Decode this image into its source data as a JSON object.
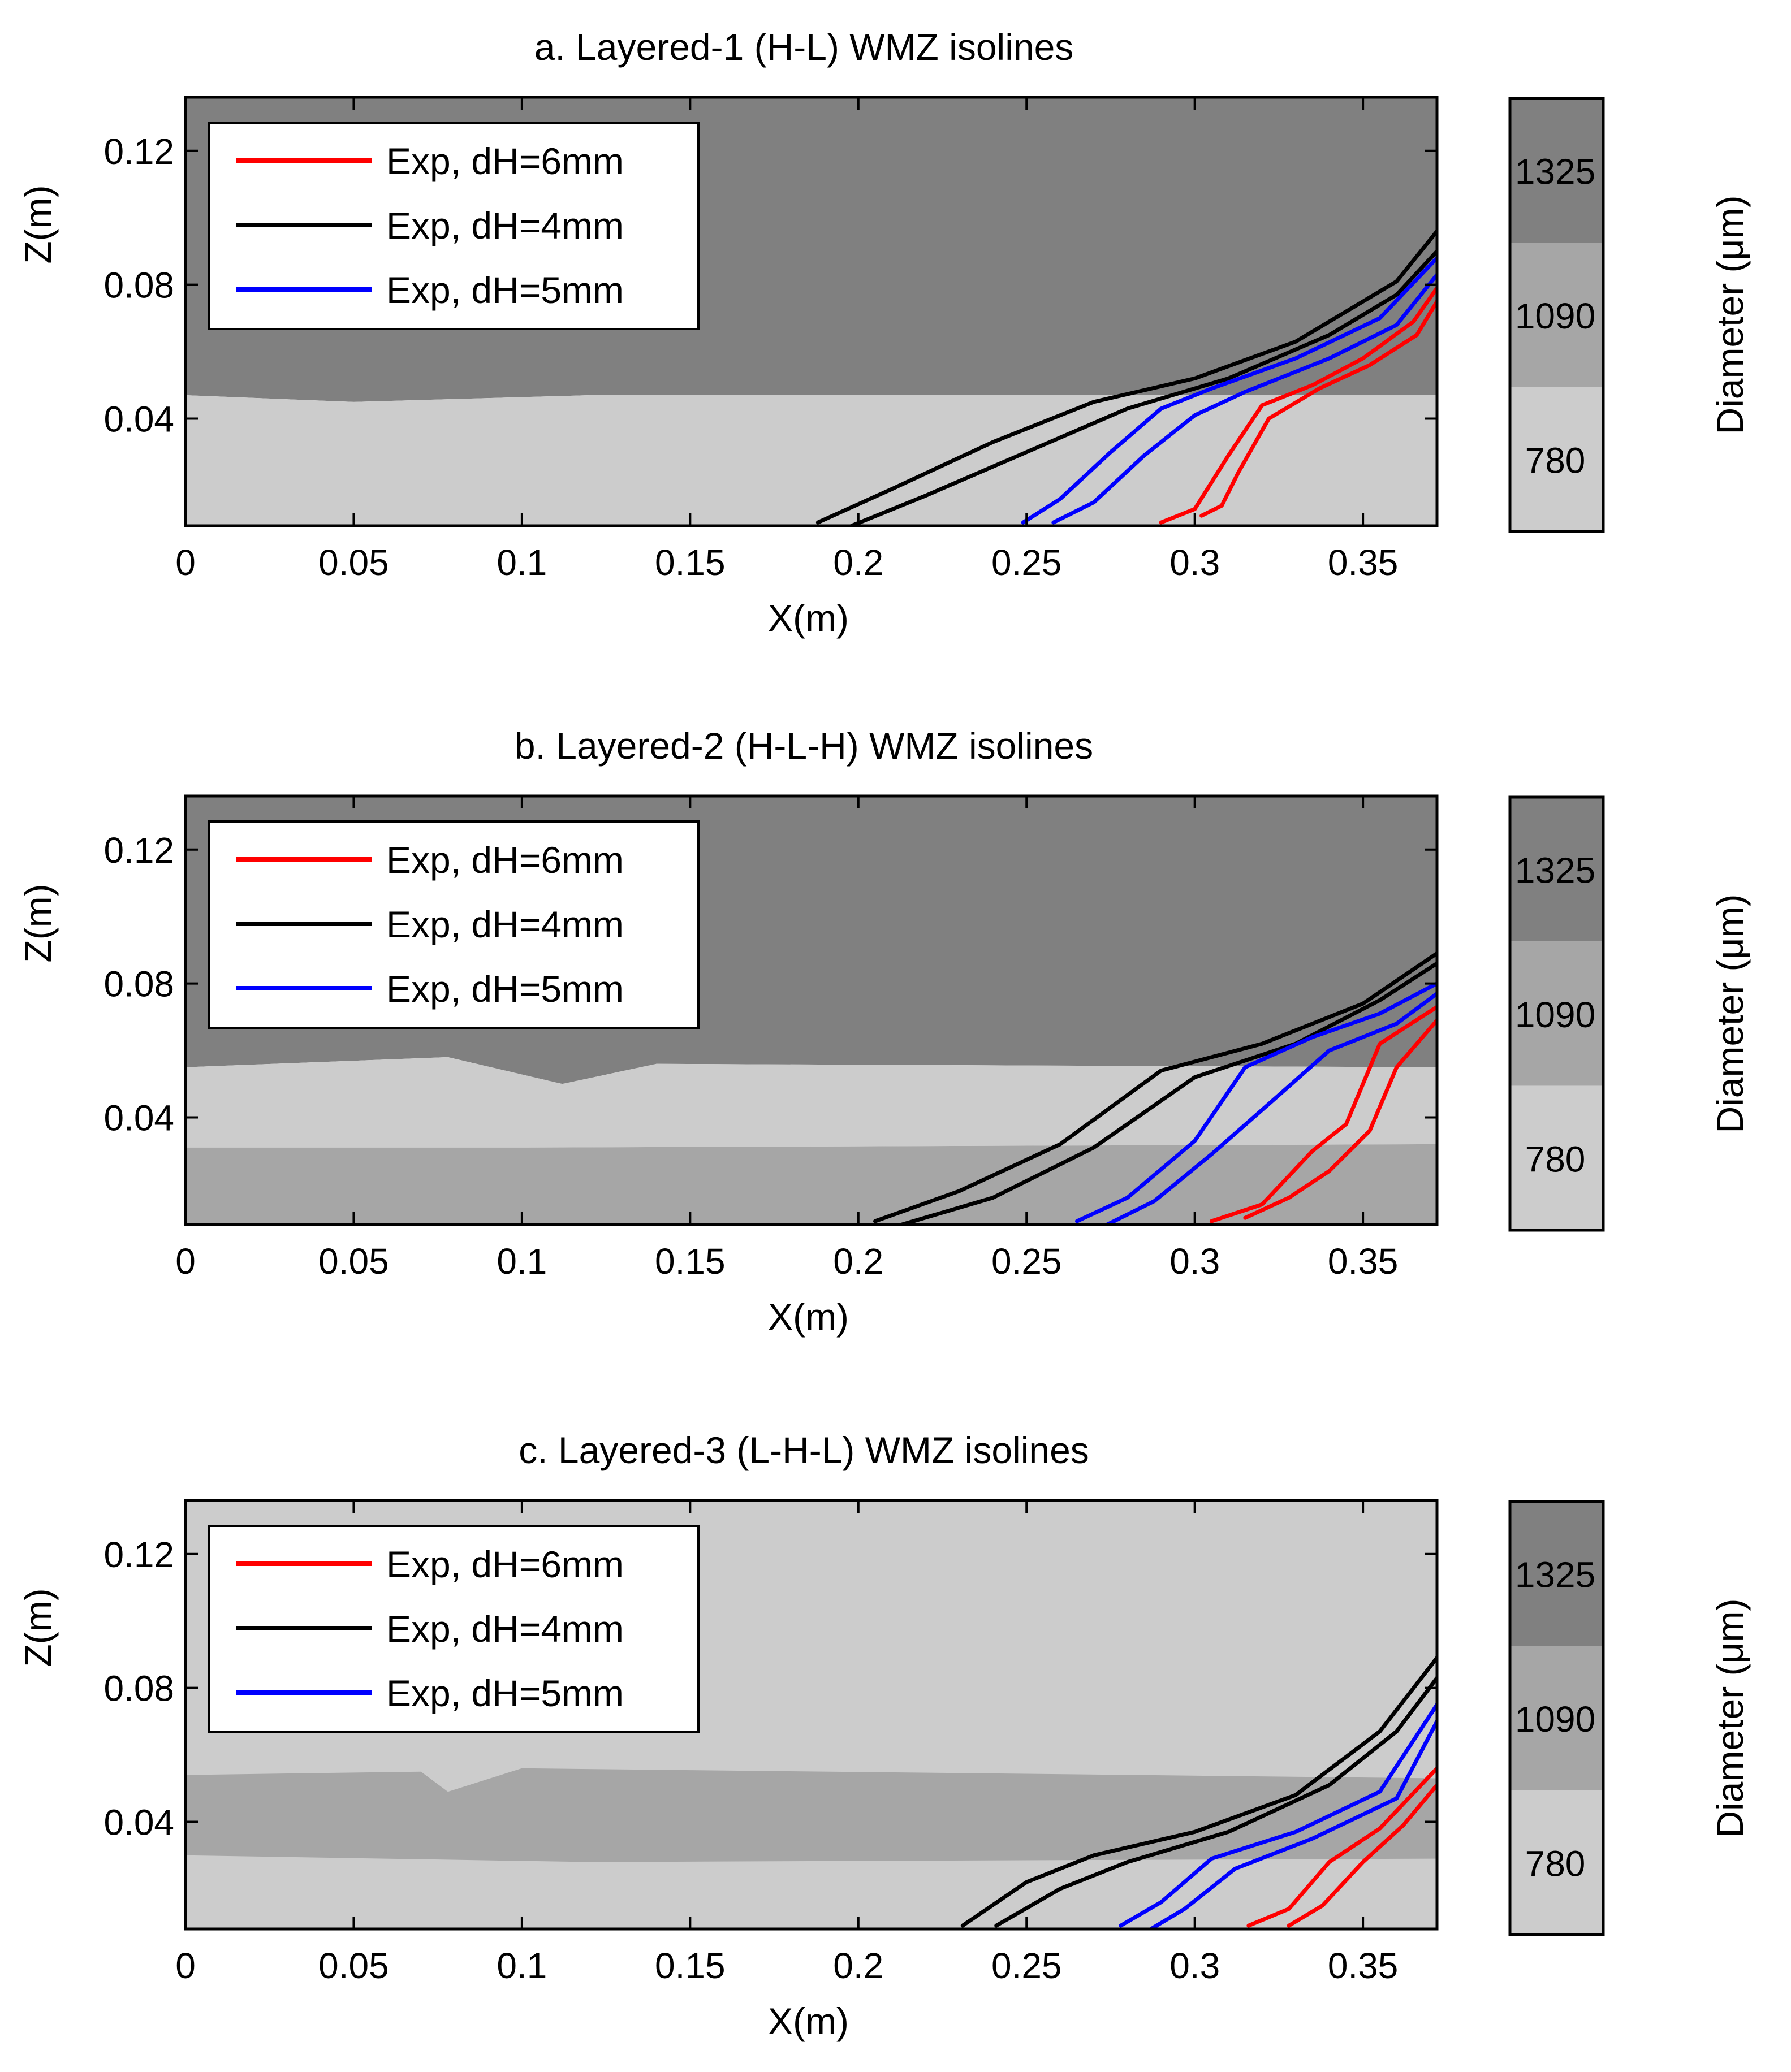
{
  "colors": {
    "dark": "#808080",
    "medium": "#a6a6a6",
    "light": "#cccccc",
    "red": "#ff0000",
    "black": "#000000",
    "blue": "#0000ff"
  },
  "colorbar": {
    "label": "Diameter (μm)",
    "ticks": [
      "1325",
      "1090",
      "780"
    ]
  },
  "chart_data": [
    {
      "type": "line",
      "title": "a. Layered-1 (H-L) WMZ isolines",
      "xlabel": "X(m)",
      "ylabel": "Z(m)",
      "xlim": [
        0,
        0.372
      ],
      "ylim": [
        0.008,
        0.136
      ],
      "xticks": [
        0,
        0.05,
        0.1,
        0.15,
        0.2,
        0.25,
        0.3,
        0.35
      ],
      "xtick_labels": [
        "0",
        "0.05",
        "0.1",
        "0.15",
        "0.2",
        "0.25",
        "0.3",
        "0.35"
      ],
      "yticks": [
        0.04,
        0.08,
        0.12
      ],
      "ytick_labels": [
        "0.04",
        "0.08",
        "0.12"
      ],
      "layers": [
        {
          "class": "dark",
          "points": [
            [
              0,
              0.136
            ],
            [
              0.372,
              0.136
            ],
            [
              0.372,
              0.047
            ],
            [
              0.32,
              0.047
            ],
            [
              0.12,
              0.047
            ],
            [
              0.05,
              0.045
            ],
            [
              0,
              0.047
            ]
          ]
        },
        {
          "class": "light",
          "points": [
            [
              0,
              0.047
            ],
            [
              0.05,
              0.045
            ],
            [
              0.12,
              0.047
            ],
            [
              0.32,
              0.047
            ],
            [
              0.372,
              0.047
            ],
            [
              0.372,
              0.008
            ],
            [
              0,
              0.008
            ]
          ]
        }
      ],
      "series": [
        {
          "name": "Exp, dH=6mm",
          "color": "red",
          "lines": [
            [
              [
                0.29,
                0.009
              ],
              [
                0.3,
                0.013
              ],
              [
                0.31,
                0.029
              ],
              [
                0.32,
                0.044
              ],
              [
                0.335,
                0.05
              ],
              [
                0.35,
                0.058
              ],
              [
                0.365,
                0.069
              ],
              [
                0.372,
                0.079
              ]
            ],
            [
              [
                0.302,
                0.011
              ],
              [
                0.308,
                0.014
              ],
              [
                0.313,
                0.024
              ],
              [
                0.322,
                0.04
              ],
              [
                0.337,
                0.049
              ],
              [
                0.352,
                0.056
              ],
              [
                0.366,
                0.065
              ],
              [
                0.372,
                0.075
              ]
            ]
          ]
        },
        {
          "name": "Exp, dH=4mm",
          "color": "black",
          "lines": [
            [
              [
                0.188,
                0.009
              ],
              [
                0.21,
                0.019
              ],
              [
                0.24,
                0.033
              ],
              [
                0.27,
                0.045
              ],
              [
                0.3,
                0.052
              ],
              [
                0.33,
                0.063
              ],
              [
                0.36,
                0.081
              ],
              [
                0.372,
                0.096
              ]
            ],
            [
              [
                0.198,
                0.008
              ],
              [
                0.22,
                0.017
              ],
              [
                0.25,
                0.03
              ],
              [
                0.28,
                0.043
              ],
              [
                0.31,
                0.052
              ],
              [
                0.34,
                0.065
              ],
              [
                0.36,
                0.077
              ],
              [
                0.372,
                0.09
              ]
            ]
          ]
        },
        {
          "name": "Exp, dH=5mm",
          "color": "blue",
          "lines": [
            [
              [
                0.249,
                0.009
              ],
              [
                0.26,
                0.016
              ],
              [
                0.275,
                0.03
              ],
              [
                0.29,
                0.043
              ],
              [
                0.305,
                0.049
              ],
              [
                0.33,
                0.058
              ],
              [
                0.355,
                0.07
              ],
              [
                0.372,
                0.088
              ]
            ],
            [
              [
                0.258,
                0.009
              ],
              [
                0.27,
                0.015
              ],
              [
                0.285,
                0.029
              ],
              [
                0.3,
                0.041
              ],
              [
                0.315,
                0.048
              ],
              [
                0.34,
                0.058
              ],
              [
                0.36,
                0.068
              ],
              [
                0.372,
                0.083
              ]
            ]
          ]
        }
      ]
    },
    {
      "type": "line",
      "title": "b. Layered-2 (H-L-H) WMZ isolines",
      "xlabel": "X(m)",
      "ylabel": "Z(m)",
      "xlim": [
        0,
        0.372
      ],
      "ylim": [
        0.008,
        0.136
      ],
      "xticks": [
        0,
        0.05,
        0.1,
        0.15,
        0.2,
        0.25,
        0.3,
        0.35
      ],
      "xtick_labels": [
        "0",
        "0.05",
        "0.1",
        "0.15",
        "0.2",
        "0.25",
        "0.3",
        "0.35"
      ],
      "yticks": [
        0.04,
        0.08,
        0.12
      ],
      "ytick_labels": [
        "0.04",
        "0.08",
        "0.12"
      ],
      "layers": [
        {
          "class": "dark",
          "points": [
            [
              0,
              0.136
            ],
            [
              0.372,
              0.136
            ],
            [
              0.372,
              0.055
            ],
            [
              0.14,
              0.056
            ],
            [
              0.112,
              0.05
            ],
            [
              0.078,
              0.058
            ],
            [
              0,
              0.055
            ]
          ]
        },
        {
          "class": "light",
          "points": [
            [
              0,
              0.055
            ],
            [
              0.078,
              0.058
            ],
            [
              0.112,
              0.05
            ],
            [
              0.14,
              0.056
            ],
            [
              0.372,
              0.055
            ],
            [
              0.372,
              0.032
            ],
            [
              0.1,
              0.031
            ],
            [
              0,
              0.031
            ]
          ]
        },
        {
          "class": "medium",
          "points": [
            [
              0,
              0.031
            ],
            [
              0.1,
              0.031
            ],
            [
              0.372,
              0.032
            ],
            [
              0.372,
              0.008
            ],
            [
              0,
              0.008
            ]
          ]
        }
      ],
      "series": [
        {
          "name": "Exp, dH=6mm",
          "color": "red",
          "lines": [
            [
              [
                0.305,
                0.009
              ],
              [
                0.32,
                0.014
              ],
              [
                0.335,
                0.03
              ],
              [
                0.345,
                0.038
              ],
              [
                0.355,
                0.062
              ],
              [
                0.372,
                0.073
              ]
            ],
            [
              [
                0.315,
                0.01
              ],
              [
                0.328,
                0.016
              ],
              [
                0.34,
                0.024
              ],
              [
                0.352,
                0.036
              ],
              [
                0.36,
                0.055
              ],
              [
                0.372,
                0.069
              ]
            ]
          ]
        },
        {
          "name": "Exp, dH=4mm",
          "color": "black",
          "lines": [
            [
              [
                0.205,
                0.009
              ],
              [
                0.23,
                0.018
              ],
              [
                0.26,
                0.032
              ],
              [
                0.29,
                0.054
              ],
              [
                0.32,
                0.062
              ],
              [
                0.35,
                0.074
              ],
              [
                0.372,
                0.089
              ]
            ],
            [
              [
                0.213,
                0.008
              ],
              [
                0.24,
                0.016
              ],
              [
                0.27,
                0.031
              ],
              [
                0.3,
                0.052
              ],
              [
                0.33,
                0.062
              ],
              [
                0.355,
                0.075
              ],
              [
                0.372,
                0.086
              ]
            ]
          ]
        },
        {
          "name": "Exp, dH=5mm",
          "color": "blue",
          "lines": [
            [
              [
                0.265,
                0.009
              ],
              [
                0.28,
                0.016
              ],
              [
                0.3,
                0.033
              ],
              [
                0.315,
                0.055
              ],
              [
                0.335,
                0.064
              ],
              [
                0.355,
                0.071
              ],
              [
                0.372,
                0.08
              ]
            ],
            [
              [
                0.274,
                0.008
              ],
              [
                0.288,
                0.015
              ],
              [
                0.305,
                0.029
              ],
              [
                0.322,
                0.044
              ],
              [
                0.34,
                0.06
              ],
              [
                0.36,
                0.068
              ],
              [
                0.372,
                0.077
              ]
            ]
          ]
        }
      ]
    },
    {
      "type": "line",
      "title": "c. Layered-3 (L-H-L) WMZ isolines",
      "xlabel": "X(m)",
      "ylabel": "Z(m)",
      "xlim": [
        0,
        0.372
      ],
      "ylim": [
        0.008,
        0.136
      ],
      "xticks": [
        0,
        0.05,
        0.1,
        0.15,
        0.2,
        0.25,
        0.3,
        0.35
      ],
      "xtick_labels": [
        "0",
        "0.05",
        "0.1",
        "0.15",
        "0.2",
        "0.25",
        "0.3",
        "0.35"
      ],
      "yticks": [
        0.04,
        0.08,
        0.12
      ],
      "ytick_labels": [
        "0.04",
        "0.08",
        "0.12"
      ],
      "layers": [
        {
          "class": "light",
          "points": [
            [
              0,
              0.136
            ],
            [
              0.372,
              0.136
            ],
            [
              0.372,
              0.008
            ],
            [
              0,
              0.008
            ]
          ]
        },
        {
          "class": "medium",
          "points": [
            [
              0,
              0.054
            ],
            [
              0.07,
              0.055
            ],
            [
              0.078,
              0.049
            ],
            [
              0.1,
              0.056
            ],
            [
              0.372,
              0.053
            ],
            [
              0.372,
              0.029
            ],
            [
              0.12,
              0.028
            ],
            [
              0,
              0.03
            ]
          ]
        }
      ],
      "series": [
        {
          "name": "Exp, dH=6mm",
          "color": "red",
          "lines": [
            [
              [
                0.316,
                0.009
              ],
              [
                0.328,
                0.014
              ],
              [
                0.34,
                0.028
              ],
              [
                0.355,
                0.038
              ],
              [
                0.372,
                0.056
              ]
            ],
            [
              [
                0.328,
                0.009
              ],
              [
                0.338,
                0.015
              ],
              [
                0.35,
                0.028
              ],
              [
                0.362,
                0.039
              ],
              [
                0.372,
                0.051
              ]
            ]
          ]
        },
        {
          "name": "Exp, dH=4mm",
          "color": "black",
          "lines": [
            [
              [
                0.231,
                0.009
              ],
              [
                0.25,
                0.022
              ],
              [
                0.27,
                0.03
              ],
              [
                0.3,
                0.037
              ],
              [
                0.33,
                0.048
              ],
              [
                0.355,
                0.067
              ],
              [
                0.372,
                0.089
              ]
            ],
            [
              [
                0.241,
                0.009
              ],
              [
                0.26,
                0.02
              ],
              [
                0.28,
                0.028
              ],
              [
                0.31,
                0.037
              ],
              [
                0.34,
                0.051
              ],
              [
                0.36,
                0.067
              ],
              [
                0.372,
                0.083
              ]
            ]
          ]
        },
        {
          "name": "Exp, dH=5mm",
          "color": "blue",
          "lines": [
            [
              [
                0.278,
                0.009
              ],
              [
                0.29,
                0.016
              ],
              [
                0.305,
                0.029
              ],
              [
                0.33,
                0.037
              ],
              [
                0.355,
                0.049
              ],
              [
                0.372,
                0.075
              ]
            ],
            [
              [
                0.287,
                0.008
              ],
              [
                0.297,
                0.014
              ],
              [
                0.312,
                0.026
              ],
              [
                0.335,
                0.035
              ],
              [
                0.36,
                0.047
              ],
              [
                0.372,
                0.07
              ]
            ]
          ]
        }
      ]
    }
  ]
}
